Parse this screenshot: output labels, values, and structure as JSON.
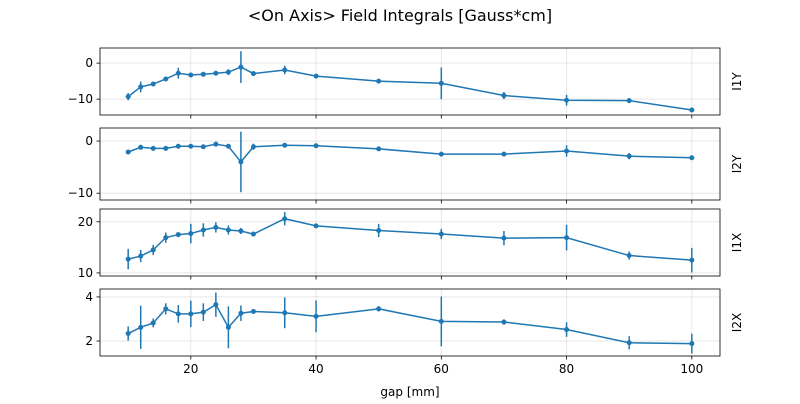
{
  "chart_data": {
    "type": "line",
    "title": "<On Axis> Field Integrals [Gauss*cm]",
    "xlabel": "gap [mm]",
    "xlim": [
      5.5,
      104.5
    ],
    "xticks": [
      20,
      40,
      60,
      80,
      100
    ],
    "grid": true,
    "color": "#1f77b4",
    "x": [
      10,
      12,
      14,
      16,
      18,
      20,
      22,
      24,
      26,
      28,
      30,
      35,
      40,
      50,
      60,
      70,
      80,
      90,
      100
    ],
    "panels": [
      {
        "ylabel": "I1Y",
        "ylim": [
          -14.4,
          4.2
        ],
        "yticks": [
          0,
          -10
        ],
        "values": [
          -9.3,
          -6.6,
          -5.8,
          -4.4,
          -2.8,
          -3.3,
          -3.1,
          -2.8,
          -2.5,
          -1.1,
          -2.9,
          -1.9,
          -3.6,
          -5.0,
          -5.6,
          -9.0,
          -10.3,
          -10.4,
          -13.0
        ],
        "errors": [
          1.0,
          1.5,
          0.5,
          0.5,
          1.5,
          0.5,
          0.5,
          0.5,
          0.8,
          4.4,
          0.6,
          1.2,
          0.4,
          0.4,
          4.4,
          1.0,
          1.5,
          0.7,
          0.5
        ]
      },
      {
        "ylabel": "I2Y",
        "ylim": [
          -11.3,
          2.5
        ],
        "yticks": [
          0,
          -10
        ],
        "values": [
          -2.1,
          -1.2,
          -1.4,
          -1.4,
          -1.0,
          -1.0,
          -1.1,
          -0.6,
          -1.0,
          -4.0,
          -1.1,
          -0.8,
          -0.9,
          -1.5,
          -2.5,
          -2.5,
          -1.9,
          -2.9,
          -3.2
        ],
        "errors": [
          0.4,
          0.3,
          0.3,
          0.3,
          0.2,
          0.2,
          0.2,
          0.2,
          0.2,
          5.8,
          0.6,
          0.2,
          0.2,
          0.2,
          0.2,
          0.2,
          1.1,
          0.6,
          0.2
        ]
      },
      {
        "ylabel": "I1X",
        "ylim": [
          9.4,
          22.5
        ],
        "yticks": [
          20,
          10
        ],
        "values": [
          12.7,
          13.3,
          14.5,
          16.9,
          17.5,
          17.7,
          18.4,
          18.9,
          18.4,
          18.2,
          17.6,
          20.6,
          19.2,
          18.3,
          17.6,
          16.8,
          16.9,
          13.4,
          12.5
        ],
        "errors": [
          2.0,
          1.2,
          1.0,
          1.0,
          0.4,
          1.9,
          1.3,
          1.0,
          0.9,
          0.6,
          0.3,
          1.3,
          0.3,
          1.3,
          1.0,
          1.4,
          2.5,
          0.8,
          2.4
        ]
      },
      {
        "ylabel": "I2X",
        "ylim": [
          1.32,
          4.36
        ],
        "yticks": [
          4,
          2
        ],
        "values": [
          2.34,
          2.62,
          2.82,
          3.46,
          3.23,
          3.23,
          3.31,
          3.65,
          2.62,
          3.26,
          3.34,
          3.28,
          3.12,
          3.46,
          2.89,
          2.86,
          2.52,
          1.92,
          1.88
        ],
        "errors": [
          0.32,
          0.98,
          0.2,
          0.25,
          0.4,
          0.6,
          0.4,
          0.55,
          0.95,
          0.35,
          0.1,
          0.7,
          0.72,
          0.12,
          1.13,
          0.12,
          0.33,
          0.3,
          0.45
        ]
      }
    ]
  }
}
